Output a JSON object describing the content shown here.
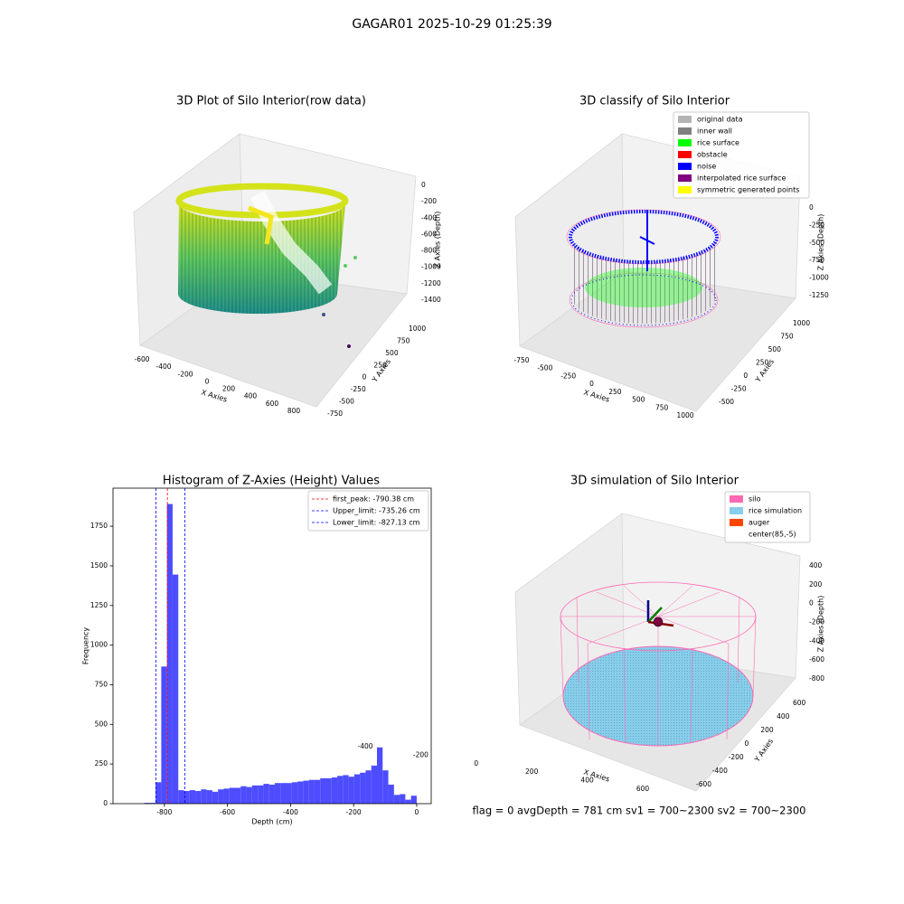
{
  "suptitle": "GAGAR01 2025-10-29 01:25:39",
  "footer": "flag = 0     avgDepth = 781 cm  sv1 = 700~2300  sv2 = 700~2300",
  "chart_data": [
    {
      "type": "scatter3d",
      "title": "3D Plot of Silo Interior(row data)",
      "xlabel": "X Axies",
      "ylabel": "Y Axies",
      "zlabel": "Z Axies (Depth)",
      "xticks": [
        -600,
        -400,
        -200,
        0,
        200,
        400,
        600,
        800
      ],
      "yticks": [
        -750,
        -500,
        -250,
        0,
        250,
        500,
        750,
        1000
      ],
      "zticks": [
        0,
        -200,
        -400,
        -600,
        -800,
        -1000,
        -1200,
        -1400
      ]
    },
    {
      "type": "scatter3d",
      "title": "3D classify of Silo Interior",
      "xlabel": "X Axies",
      "ylabel": "Y Axies",
      "zlabel": "Z Axies (Depth)",
      "xticks": [
        -750,
        -500,
        -250,
        0,
        250,
        500,
        750,
        1000
      ],
      "yticks": [
        -500,
        -250,
        0,
        250,
        500,
        750,
        1000
      ],
      "zticks": [
        0,
        -250,
        -500,
        -750,
        -1000,
        -1250
      ],
      "legend_loc": "upper right",
      "legend": [
        {
          "name": "original data",
          "color": "#b3b3b3"
        },
        {
          "name": "inner wall",
          "color": "#808080"
        },
        {
          "name": "rice surface",
          "color": "#00ff00"
        },
        {
          "name": "obstacle",
          "color": "#ff0000"
        },
        {
          "name": "noise",
          "color": "#0000ff"
        },
        {
          "name": "interpolated rice surface",
          "color": "#800080"
        },
        {
          "name": "symmetric generated points",
          "color": "#ffff00"
        }
      ]
    },
    {
      "type": "histogram",
      "title": "Histogram of Z-Axies (Height) Values",
      "xlabel": "Depth (cm)",
      "ylabel": "Frequency",
      "color": "#4d4dff",
      "bins": [
        -900,
        -882,
        -864,
        -846,
        -828,
        -810,
        -792,
        -774,
        -756,
        -738,
        -720,
        -702,
        -684,
        -666,
        -648,
        -630,
        -612,
        -594,
        -576,
        -558,
        -540,
        -522,
        -504,
        -486,
        -468,
        -450,
        -432,
        -414,
        -396,
        -378,
        -360,
        -342,
        -324,
        -306,
        -288,
        -270,
        -252,
        -234,
        -216,
        -198,
        -180,
        -162,
        -144,
        -126,
        -108,
        -90,
        -72,
        -54,
        -36,
        -18,
        0
      ],
      "counts": [
        0,
        0,
        5,
        5,
        135,
        865,
        1890,
        1445,
        85,
        80,
        85,
        80,
        90,
        85,
        75,
        90,
        95,
        100,
        100,
        110,
        105,
        115,
        115,
        125,
        120,
        130,
        130,
        130,
        135,
        140,
        145,
        150,
        150,
        160,
        160,
        165,
        175,
        180,
        170,
        185,
        195,
        210,
        240,
        355,
        210,
        120,
        55,
        60,
        25,
        50
      ],
      "xlim": [
        -963,
        46
      ],
      "ylim": [
        0,
        1990
      ],
      "xticks": [
        -800,
        -600,
        -400,
        -200,
        0
      ],
      "yticks": [
        0,
        250,
        500,
        750,
        1000,
        1250,
        1500,
        1750
      ],
      "legend_loc": "upper right",
      "vlines": [
        {
          "label": "first_peak: -790.38 cm",
          "value": -790.38,
          "color": "#ff0000"
        },
        {
          "label": "Upper_limit: -735.26 cm",
          "value": -735.26,
          "color": "#0000ff"
        },
        {
          "label": "Lower_limit: -827.13 cm",
          "value": -827.13,
          "color": "#0000ff"
        }
      ]
    },
    {
      "type": "wireframe3d",
      "title": "3D simulation of Silo Interior",
      "xlabel": "X Axies",
      "ylabel": "Y Axies",
      "zlabel": "Z Axies (Depth)",
      "xticks": [
        -400,
        -200,
        0,
        200,
        400,
        600
      ],
      "yticks": [
        -600,
        -400,
        -200,
        0,
        200,
        400,
        600
      ],
      "zticks": [
        400,
        200,
        0,
        -200,
        -400,
        -600,
        -800
      ],
      "legend_loc": "upper right",
      "legend": [
        {
          "name": "silo",
          "color": "#ff69b4"
        },
        {
          "name": "rice simulation",
          "color": "#87ceeb"
        },
        {
          "name": "auger",
          "color": "#ff4500"
        },
        {
          "name": "center(85,-5)",
          "color": "#ffffff"
        }
      ]
    }
  ]
}
